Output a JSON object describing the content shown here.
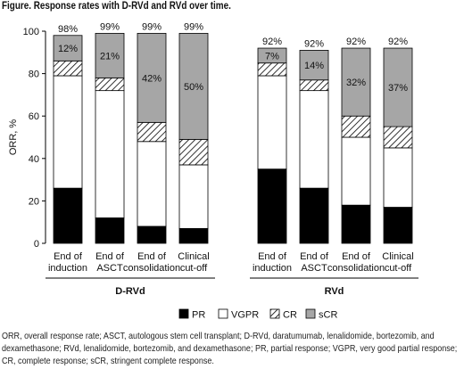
{
  "title": "Figure. Response rates with D-RVd and RVd over time.",
  "footnote_lines": [
    "ORR, overall response rate; ASCT, autologous stem cell transplant; D-RVd, daratumumab, lenalidomide, bortezomib, and",
    "dexamethasone; RVd, lenalidomide, bortezomib, and dexamethasone; PR, partial response; VGPR, very good partial response;",
    "CR, complete response; sCR, stringent complete response."
  ],
  "chart_data": {
    "type": "bar",
    "stacked": true,
    "ylabel": "ORR, %",
    "ylim": [
      0,
      100
    ],
    "yticks": [
      0,
      20,
      40,
      60,
      80,
      100
    ],
    "grid": false,
    "legend_position": "bottom-center",
    "groups": [
      {
        "name": "D-RVd",
        "categories": [
          [
            "End of",
            "induction"
          ],
          [
            "End of",
            "ASCT"
          ],
          [
            "End of",
            "consolidation"
          ],
          [
            "Clinical",
            "cut-off"
          ]
        ],
        "totals": [
          "98%",
          "99%",
          "99%",
          "99%"
        ],
        "series": [
          {
            "name": "PR",
            "values": [
              26,
              12,
              8,
              7
            ]
          },
          {
            "name": "VGPR",
            "values": [
              53,
              60,
              40,
              30
            ]
          },
          {
            "name": "CR",
            "values": [
              7,
              6,
              9,
              12
            ]
          },
          {
            "name": "sCR",
            "values": [
              12,
              21,
              42,
              50
            ]
          }
        ],
        "scr_labels": [
          "12%",
          "21%",
          "42%",
          "50%"
        ]
      },
      {
        "name": "RVd",
        "categories": [
          [
            "End of",
            "induction"
          ],
          [
            "End of",
            "ASCT"
          ],
          [
            "End of",
            "consolidation"
          ],
          [
            "Clinical",
            "cut-off"
          ]
        ],
        "totals": [
          "92%",
          "92%",
          "92%",
          "92%"
        ],
        "series": [
          {
            "name": "PR",
            "values": [
              35,
              26,
              18,
              17
            ]
          },
          {
            "name": "VGPR",
            "values": [
              44,
              46,
              32,
              28
            ]
          },
          {
            "name": "CR",
            "values": [
              6,
              5,
              10,
              10
            ]
          },
          {
            "name": "sCR",
            "values": [
              7,
              14,
              32,
              37
            ]
          }
        ],
        "scr_labels": [
          "7%",
          "14%",
          "32%",
          "37%"
        ]
      }
    ],
    "legend": [
      "PR",
      "VGPR",
      "CR",
      "sCR"
    ],
    "colors": {
      "PR": "#000000",
      "VGPR": "#ffffff",
      "CR": "#ffffff",
      "sCR": "#a6a6a6"
    }
  }
}
